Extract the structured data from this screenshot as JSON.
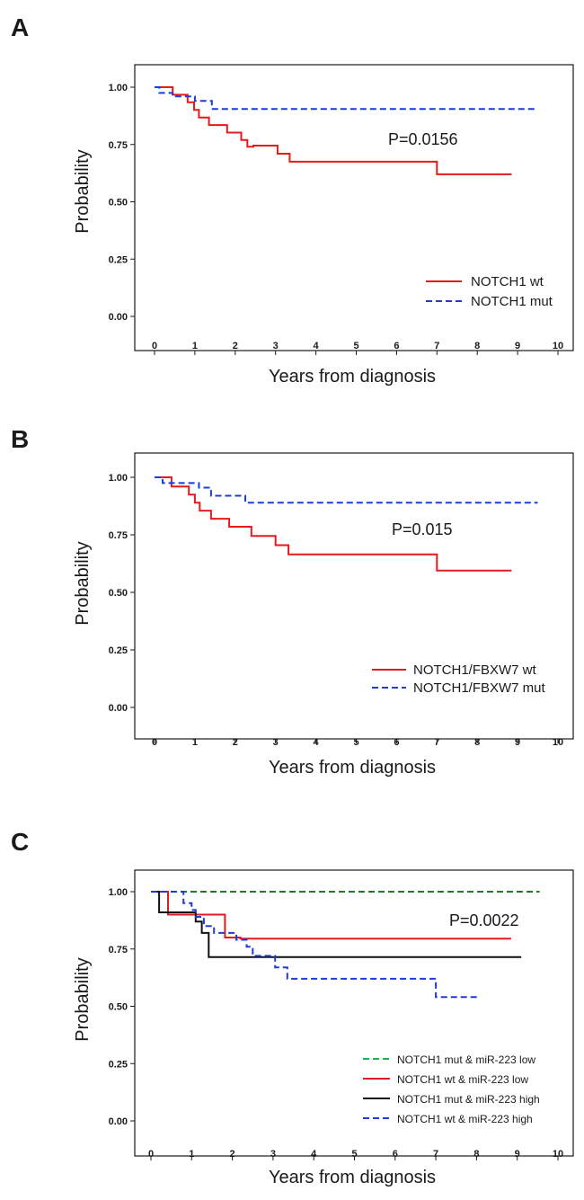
{
  "chart_data": [
    {
      "type": "line",
      "panel_label": "A",
      "xlabel": "Years from diagnosis",
      "ylabel": "Probability",
      "xlim": [
        0,
        10
      ],
      "ylim": [
        0,
        1
      ],
      "x_ticks": [
        "0",
        "1",
        "2",
        "3",
        "4",
        "5",
        "6",
        "7",
        "8",
        "9",
        "10"
      ],
      "y_ticks": [
        "0.00",
        "0.25",
        "0.50",
        "0.75",
        "1.00"
      ],
      "annotation": "P=0.0156",
      "legend_position": "bottom-right",
      "series": [
        {
          "name": "NOTCH1 wt",
          "color": "#e41a1c",
          "dash": "solid",
          "x": [
            0,
            0.45,
            0.45,
            0.82,
            0.82,
            0.98,
            0.98,
            1.1,
            1.1,
            1.35,
            1.35,
            1.8,
            1.8,
            2.15,
            2.15,
            2.3,
            2.3,
            2.45,
            2.45,
            3.05,
            3.05,
            3.35,
            3.35,
            7.0,
            7.0,
            8.85
          ],
          "y": [
            1.0,
            1.0,
            0.967,
            0.967,
            0.934,
            0.934,
            0.901,
            0.901,
            0.868,
            0.868,
            0.835,
            0.835,
            0.802,
            0.802,
            0.77,
            0.77,
            0.74,
            0.74,
            0.745,
            0.745,
            0.71,
            0.71,
            0.675,
            0.675,
            0.62,
            0.62
          ]
        },
        {
          "name": "NOTCH1 mut",
          "color": "#1f3bd6",
          "dash": "dashed",
          "x": [
            0,
            0.12,
            0.12,
            0.45,
            0.45,
            1.0,
            1.0,
            1.42,
            1.42,
            9.5
          ],
          "y": [
            1.0,
            1.0,
            0.975,
            0.975,
            0.96,
            0.96,
            0.94,
            0.94,
            0.905,
            0.905
          ]
        }
      ]
    },
    {
      "type": "line",
      "panel_label": "B",
      "xlabel": "Years from diagnosis",
      "ylabel": "Probability",
      "xlim": [
        0,
        10
      ],
      "ylim": [
        0,
        1
      ],
      "x_ticks": [
        "0",
        "1",
        "2",
        "3",
        "4",
        "5",
        "6",
        "7",
        "8",
        "9",
        "10"
      ],
      "y_ticks": [
        "0.00",
        "0.25",
        "0.50",
        "0.75",
        "1.00"
      ],
      "annotation": "P=0.015",
      "legend_position": "bottom-right",
      "series": [
        {
          "name": "NOTCH1/FBXW7 wt",
          "color": "#e41a1c",
          "dash": "solid",
          "x": [
            0,
            0.42,
            0.42,
            0.85,
            0.85,
            1.0,
            1.0,
            1.12,
            1.12,
            1.4,
            1.4,
            1.85,
            1.85,
            2.4,
            2.4,
            3.0,
            3.0,
            3.32,
            3.32,
            7.0,
            7.0,
            8.85
          ],
          "y": [
            1.0,
            1.0,
            0.96,
            0.96,
            0.925,
            0.925,
            0.89,
            0.89,
            0.855,
            0.855,
            0.82,
            0.82,
            0.785,
            0.785,
            0.745,
            0.745,
            0.705,
            0.705,
            0.665,
            0.665,
            0.595,
            0.595
          ]
        },
        {
          "name": "NOTCH1/FBXW7 mut",
          "color": "#1f3bd6",
          "dash": "dashed",
          "x": [
            0,
            0.2,
            0.2,
            1.1,
            1.1,
            1.4,
            1.4,
            2.25,
            2.25,
            9.5
          ],
          "y": [
            1.0,
            1.0,
            0.975,
            0.975,
            0.955,
            0.955,
            0.92,
            0.92,
            0.89,
            0.89
          ]
        }
      ]
    },
    {
      "type": "line",
      "panel_label": "C",
      "xlabel": "Years from diagnosis",
      "ylabel": "Probability",
      "xlim": [
        0,
        10
      ],
      "ylim": [
        0,
        1
      ],
      "x_ticks": [
        "0",
        "1",
        "2",
        "3",
        "4",
        "5",
        "6",
        "7",
        "8",
        "9",
        "10"
      ],
      "y_ticks": [
        "0.00",
        "0.25",
        "0.50",
        "0.75",
        "1.00"
      ],
      "annotation": "P=0.0022",
      "legend_position": "bottom-right",
      "series": [
        {
          "name": "NOTCH1 mut & miR-223 low",
          "color": "#1f7a2b",
          "legend_color": "#22b04a",
          "dash": "dashed",
          "x": [
            0,
            9.55
          ],
          "y": [
            1.0,
            1.0
          ]
        },
        {
          "name": "NOTCH1 wt & miR-223 low",
          "color": "#e41a1c",
          "dash": "solid",
          "x": [
            0,
            0.42,
            0.42,
            1.82,
            1.82,
            2.2,
            2.2,
            8.85
          ],
          "y": [
            1.0,
            1.0,
            0.9,
            0.9,
            0.8,
            0.8,
            0.795,
            0.795
          ]
        },
        {
          "name": "NOTCH1 mut & miR-223 high",
          "color": "#111111",
          "dash": "solid",
          "x": [
            0,
            0.2,
            0.2,
            1.1,
            1.1,
            1.25,
            1.25,
            1.42,
            1.42,
            9.1
          ],
          "y": [
            1.0,
            1.0,
            0.91,
            0.91,
            0.87,
            0.87,
            0.82,
            0.82,
            0.715,
            0.715
          ]
        },
        {
          "name": "NOTCH1 wt & miR-223 high",
          "color": "#1f3bd6",
          "dash": "dashed",
          "x": [
            0,
            0.8,
            0.8,
            1.0,
            1.0,
            1.1,
            1.1,
            1.3,
            1.3,
            1.55,
            1.55,
            2.1,
            2.1,
            2.35,
            2.35,
            2.5,
            2.5,
            3.05,
            3.05,
            3.35,
            3.35,
            7.0,
            7.0,
            8.05
          ],
          "y": [
            1.0,
            1.0,
            0.95,
            0.95,
            0.92,
            0.92,
            0.89,
            0.89,
            0.85,
            0.85,
            0.82,
            0.82,
            0.79,
            0.79,
            0.76,
            0.76,
            0.72,
            0.72,
            0.67,
            0.67,
            0.62,
            0.62,
            0.54,
            0.54
          ]
        }
      ]
    }
  ]
}
